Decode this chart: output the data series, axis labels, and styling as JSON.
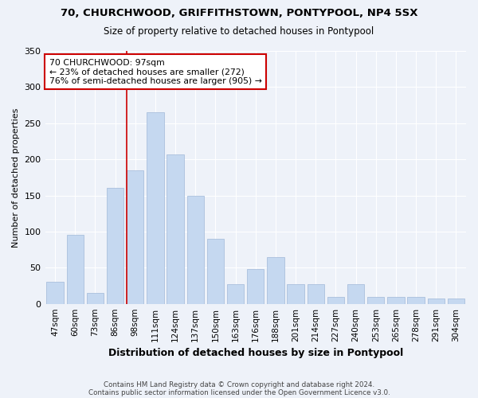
{
  "title1": "70, CHURCHWOOD, GRIFFITHSTOWN, PONTYPOOL, NP4 5SX",
  "title2": "Size of property relative to detached houses in Pontypool",
  "xlabel": "Distribution of detached houses by size in Pontypool",
  "ylabel": "Number of detached properties",
  "categories": [
    "47sqm",
    "60sqm",
    "73sqm",
    "86sqm",
    "98sqm",
    "111sqm",
    "124sqm",
    "137sqm",
    "150sqm",
    "163sqm",
    "176sqm",
    "188sqm",
    "201sqm",
    "214sqm",
    "227sqm",
    "240sqm",
    "253sqm",
    "265sqm",
    "278sqm",
    "291sqm",
    "304sqm"
  ],
  "values": [
    30,
    95,
    15,
    160,
    185,
    265,
    207,
    150,
    90,
    27,
    48,
    65,
    27,
    27,
    10,
    27,
    10,
    10,
    10,
    7,
    7
  ],
  "bar_color": "#c5d8f0",
  "bar_edge_color": "#a0b8d8",
  "marker_index": 4,
  "marker_color": "#cc0000",
  "annotation_text": "70 CHURCHWOOD: 97sqm\n← 23% of detached houses are smaller (272)\n76% of semi-detached houses are larger (905) →",
  "annotation_box_color": "#ffffff",
  "annotation_border_color": "#cc0000",
  "background_color": "#eef2f9",
  "grid_color": "#ffffff",
  "footer1": "Contains HM Land Registry data © Crown copyright and database right 2024.",
  "footer2": "Contains public sector information licensed under the Open Government Licence v3.0.",
  "ylim": [
    0,
    350
  ],
  "yticks": [
    0,
    50,
    100,
    150,
    200,
    250,
    300,
    350
  ]
}
